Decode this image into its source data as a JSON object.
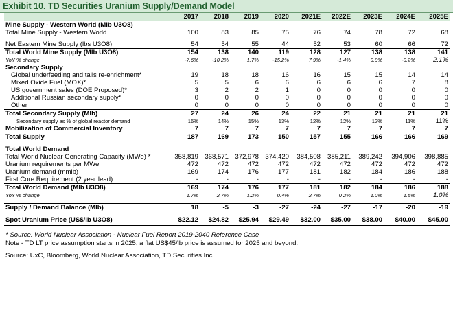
{
  "title": "Exhibit 10. TD Securities Uranium Supply/Demand Model",
  "columns": [
    "2017",
    "2018",
    "2019",
    "2020",
    "2021E",
    "2022E",
    "2023E",
    "2024E",
    "2025E"
  ],
  "rows": [
    {
      "id": "mine-supply-header",
      "label": "Mine Supply - Western World (Mlb U3O8)",
      "style": "bold",
      "values": [
        "",
        "",
        "",
        "",
        "",
        "",
        "",
        "",
        ""
      ]
    },
    {
      "id": "total-mine-western",
      "label": "Total Mine Supply - Western World",
      "values": [
        "100",
        "83",
        "85",
        "75",
        "76",
        "74",
        "78",
        "72",
        "68"
      ]
    },
    {
      "id": "spacer1",
      "label": "",
      "style": "spacer",
      "values": [
        "",
        "",
        "",
        "",
        "",
        "",
        "",
        "",
        ""
      ]
    },
    {
      "id": "net-eastern",
      "label": "Net Eastern Mine Supply (lbs U3O8)",
      "values": [
        "54",
        "54",
        "55",
        "44",
        "52",
        "53",
        "60",
        "66",
        "72"
      ]
    },
    {
      "id": "total-world-mine",
      "label": "Total World Mine Supply (Mlb U3O8)",
      "style": "bold topline",
      "values": [
        "154",
        "138",
        "140",
        "119",
        "128",
        "127",
        "138",
        "138",
        "141"
      ]
    },
    {
      "id": "yoy-mine",
      "label": "YoY % change",
      "style": "it",
      "values": [
        "-7.6%",
        "-10.2%",
        "1.7%",
        "-15.2%",
        "7.9%",
        "-1.4%",
        "9.0%",
        "-0.2%",
        "2.1%"
      ]
    },
    {
      "id": "secondary-header",
      "label": "Secondary Supply",
      "style": "bold",
      "values": [
        "",
        "",
        "",
        "",
        "",
        "",
        "",
        "",
        ""
      ]
    },
    {
      "id": "underfeeding",
      "label": "Global underfeeding and tails re-enrichment*",
      "style": "indent",
      "values": [
        "19",
        "18",
        "18",
        "16",
        "16",
        "15",
        "15",
        "14",
        "14"
      ]
    },
    {
      "id": "mox",
      "label": "Mixed Oxide Fuel (MOX)*",
      "style": "indent",
      "values": [
        "5",
        "5",
        "6",
        "6",
        "6",
        "6",
        "6",
        "7",
        "8"
      ]
    },
    {
      "id": "us-gov",
      "label": "US government sales (DOE Proposed)*",
      "style": "indent",
      "values": [
        "3",
        "2",
        "2",
        "1",
        "0",
        "0",
        "0",
        "0",
        "0"
      ]
    },
    {
      "id": "russian",
      "label": "Additional Russian secondary supply*",
      "style": "indent",
      "values": [
        "0",
        "0",
        "0",
        "0",
        "0",
        "0",
        "0",
        "0",
        "0"
      ]
    },
    {
      "id": "other",
      "label": "Other",
      "style": "indent",
      "values": [
        "0",
        "0",
        "0",
        "0",
        "0",
        "0",
        "0",
        "0",
        "0"
      ]
    },
    {
      "id": "total-secondary",
      "label": "Total Secondary Supply (Mlb)",
      "style": "bold topline",
      "values": [
        "27",
        "24",
        "26",
        "24",
        "22",
        "21",
        "21",
        "21",
        "21"
      ]
    },
    {
      "id": "secondary-pct",
      "label": "Secondary supply as % of global reactor demand",
      "style": "sm indent2",
      "values": [
        "16%",
        "14%",
        "15%",
        "13%",
        "12%",
        "12%",
        "12%",
        "11%",
        "11%"
      ]
    },
    {
      "id": "mobilization",
      "label": "Mobilization of Commercial Inventory",
      "style": "bold",
      "values": [
        "7",
        "7",
        "7",
        "7",
        "7",
        "7",
        "7",
        "7",
        "7"
      ]
    },
    {
      "id": "total-supply",
      "label": "Total Supply",
      "style": "bold topline botline",
      "values": [
        "187",
        "169",
        "173",
        "150",
        "157",
        "155",
        "166",
        "166",
        "169"
      ]
    },
    {
      "id": "spacer2",
      "label": "",
      "style": "spacer",
      "values": [
        "",
        "",
        "",
        "",
        "",
        "",
        "",
        "",
        ""
      ]
    },
    {
      "id": "demand-header",
      "label": "Total World Demand",
      "style": "bold",
      "values": [
        "",
        "",
        "",
        "",
        "",
        "",
        "",
        "",
        ""
      ]
    },
    {
      "id": "capacity",
      "label": "Total World Nuclear Generating Capacity (MWe) *",
      "values": [
        "358,819",
        "368,571",
        "372,978",
        "374,420",
        "384,508",
        "385,211",
        "389,242",
        "394,906",
        "398,885"
      ]
    },
    {
      "id": "uranium-req",
      "label": "Uranium requirements per MWe",
      "values": [
        "472",
        "472",
        "472",
        "472",
        "472",
        "472",
        "472",
        "472",
        "472"
      ]
    },
    {
      "id": "uranium-demand",
      "label": "Uranium demand (mmlb)",
      "values": [
        "169",
        "174",
        "176",
        "177",
        "181",
        "182",
        "184",
        "186",
        "188"
      ]
    },
    {
      "id": "first-core",
      "label": "First Core Requirement (2 year lead)",
      "values": [
        "-",
        "-",
        "-",
        "-",
        "-",
        "-",
        "-",
        "-",
        "-"
      ]
    },
    {
      "id": "total-demand",
      "label": "Total World Demand (Mlb U3O8)",
      "style": "bold topline",
      "values": [
        "169",
        "174",
        "176",
        "177",
        "181",
        "182",
        "184",
        "186",
        "188"
      ]
    },
    {
      "id": "yoy-demand",
      "label": "YoY % change",
      "style": "it",
      "values": [
        "1.7%",
        "2.7%",
        "1.2%",
        "0.4%",
        "2.7%",
        "0.2%",
        "1.0%",
        "1.5%",
        "1.0%"
      ]
    },
    {
      "id": "spacer3",
      "label": "",
      "style": "spacer",
      "values": [
        "",
        "",
        "",
        "",
        "",
        "",
        "",
        "",
        ""
      ]
    },
    {
      "id": "balance",
      "label": "Supply / Demand Balance (Mlb)",
      "style": "bold topline",
      "values": [
        "18",
        "-5",
        "-3",
        "-27",
        "-24",
        "-27",
        "-17",
        "-20",
        "-19"
      ]
    },
    {
      "id": "spacer4",
      "label": "",
      "style": "spacer",
      "values": [
        "",
        "",
        "",
        "",
        "",
        "",
        "",
        "",
        ""
      ]
    },
    {
      "id": "spot-price",
      "label": "Spot Uranium Price (US$/lb U3O8)",
      "style": "bold topline dbl",
      "values": [
        "$22.12",
        "$24.82",
        "$25.94",
        "$29.49",
        "$32.00",
        "$35.00",
        "$38.00",
        "$40.00",
        "$45.00"
      ]
    }
  ],
  "notes": {
    "source_note": "* Source: World Nuclear Association - Nuclear Fuel Report 2019-2040 Reference Case",
    "price_note": "Note - TD LT price assumption starts in 2025; a flat US$45/lb price is assumed for 2025 and beyond.",
    "sources": "Source: UxC, Bloomberg, World Nuclear Association, TD Securities Inc."
  },
  "colors": {
    "header_bg": "#d5ead8",
    "title_text": "#1f5f2c"
  }
}
